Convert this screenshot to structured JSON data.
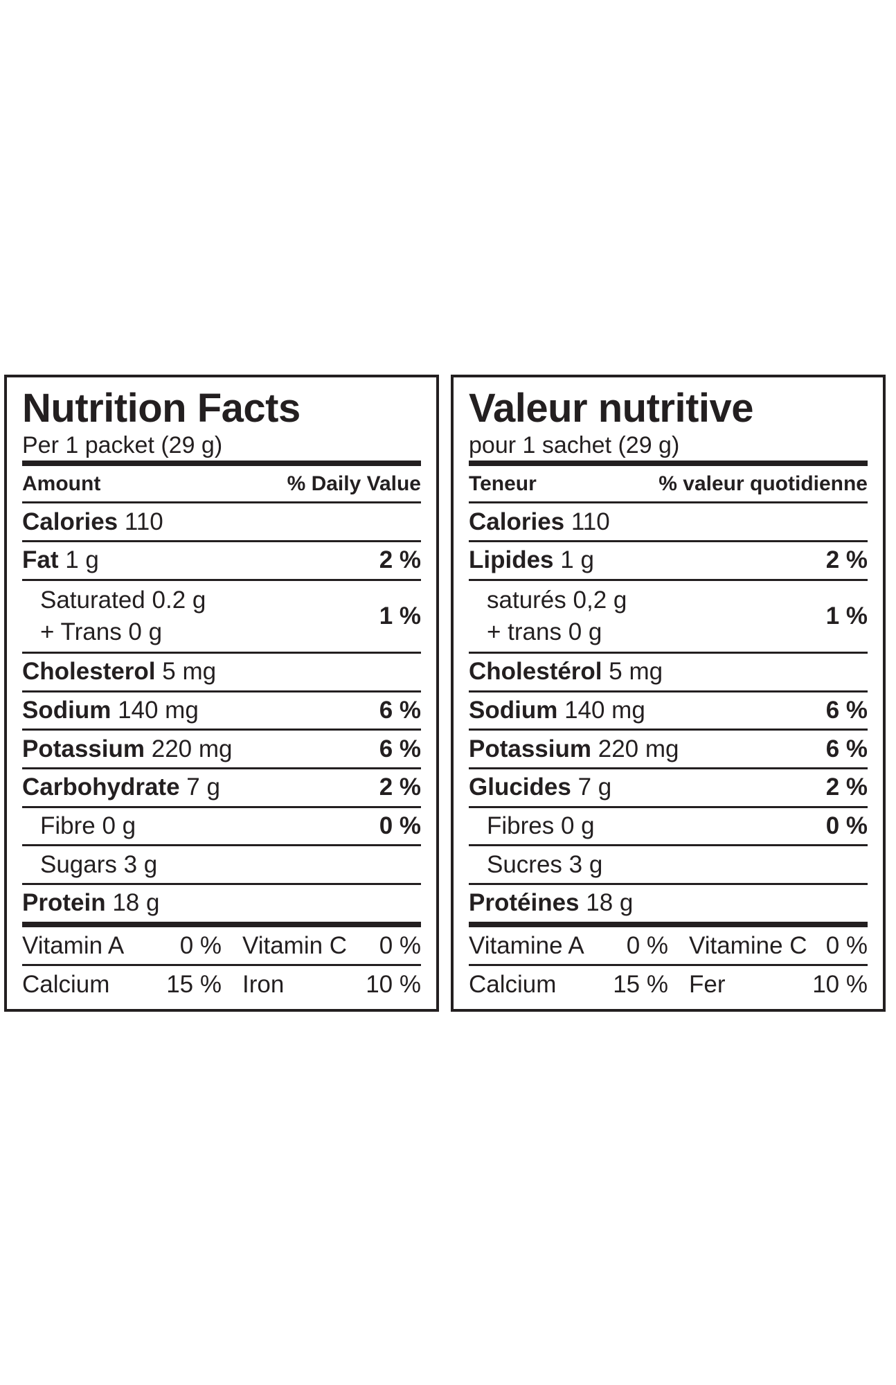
{
  "labels": [
    {
      "title": "Nutrition Facts",
      "serving": "Per 1 packet (29 g)",
      "header": {
        "amount": "Amount",
        "daily_value": "% Daily Value"
      },
      "rows": [
        {
          "name": "Calories",
          "amount": "110"
        },
        {
          "name": "Fat",
          "amount": "1 g",
          "dv": "2 %"
        },
        {
          "item": "Saturated 0.2 g",
          "item2": "+ Trans 0 g",
          "dv": "1 %"
        },
        {
          "name": "Cholesterol",
          "amount": "5 mg"
        },
        {
          "name": "Sodium",
          "amount": "140 mg",
          "dv": "6 %"
        },
        {
          "name": "Potassium",
          "amount": "220 mg",
          "dv": "6 %"
        },
        {
          "name": "Carbohydrate",
          "amount": "7 g",
          "dv": "2 %"
        },
        {
          "item": "Fibre 0 g",
          "dv": "0 %"
        },
        {
          "item": "Sugars 3 g"
        },
        {
          "name": "Protein",
          "amount": "18 g"
        }
      ],
      "vitamins": [
        [
          "Vitamin A",
          "0 %",
          "Vitamin C",
          "0 %"
        ],
        [
          "Calcium",
          "15 %",
          "Iron",
          "10 %"
        ]
      ]
    },
    {
      "title": "Valeur nutritive",
      "serving": "pour 1 sachet (29 g)",
      "header": {
        "amount": "Teneur",
        "daily_value": "% valeur quotidienne"
      },
      "rows": [
        {
          "name": "Calories",
          "amount": "110"
        },
        {
          "name": "Lipides",
          "amount": "1 g",
          "dv": "2 %"
        },
        {
          "item": "saturés 0,2 g",
          "item2": "+ trans 0 g",
          "dv": "1 %"
        },
        {
          "name": "Cholestérol",
          "amount": "5 mg"
        },
        {
          "name": "Sodium",
          "amount": "140 mg",
          "dv": "6 %"
        },
        {
          "name": "Potassium",
          "amount": "220 mg",
          "dv": "6 %"
        },
        {
          "name": "Glucides",
          "amount": "7 g",
          "dv": "2 %"
        },
        {
          "item": "Fibres 0 g",
          "dv": "0 %"
        },
        {
          "item": "Sucres 3 g"
        },
        {
          "name": "Protéines",
          "amount": "18 g"
        }
      ],
      "vitamins": [
        [
          "Vitamine A",
          "0 %",
          "Vitamine C",
          "0 %"
        ],
        [
          "Calcium",
          "15 %",
          "Fer",
          "10 %"
        ]
      ]
    }
  ]
}
